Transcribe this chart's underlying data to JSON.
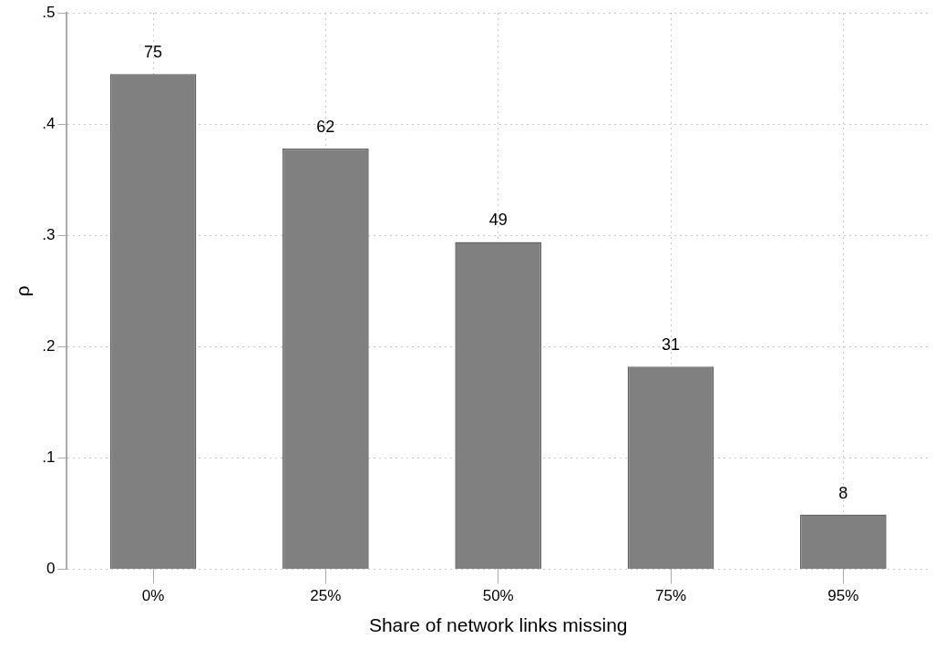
{
  "chart_data": {
    "type": "bar",
    "xlabel": "Share of network links missing",
    "ylabel": "ρ",
    "categories": [
      "0%",
      "25%",
      "50%",
      "75%",
      "95%"
    ],
    "values": [
      0.445,
      0.378,
      0.294,
      0.182,
      0.049
    ],
    "annotations": [
      {
        "text": "75",
        "x": "0%",
        "y": 0.445
      },
      {
        "text": "62",
        "x": "25%",
        "y": 0.378
      },
      {
        "text": "49",
        "x": "50%",
        "y": 0.294
      },
      {
        "text": "31",
        "x": "75%",
        "y": 0.182
      },
      {
        "text": "8",
        "x": "95%",
        "y": 0.049
      }
    ],
    "color": "#808080",
    "ylim": [
      0,
      0.5
    ],
    "yticks": [
      {
        "value": 0,
        "label": "0"
      },
      {
        "value": 0.1,
        "label": ".1"
      },
      {
        "value": 0.2,
        "label": ".2"
      },
      {
        "value": 0.3,
        "label": ".3"
      },
      {
        "value": 0.4,
        "label": ".4"
      },
      {
        "value": 0.5,
        "label": ".5"
      }
    ],
    "grid": true
  }
}
